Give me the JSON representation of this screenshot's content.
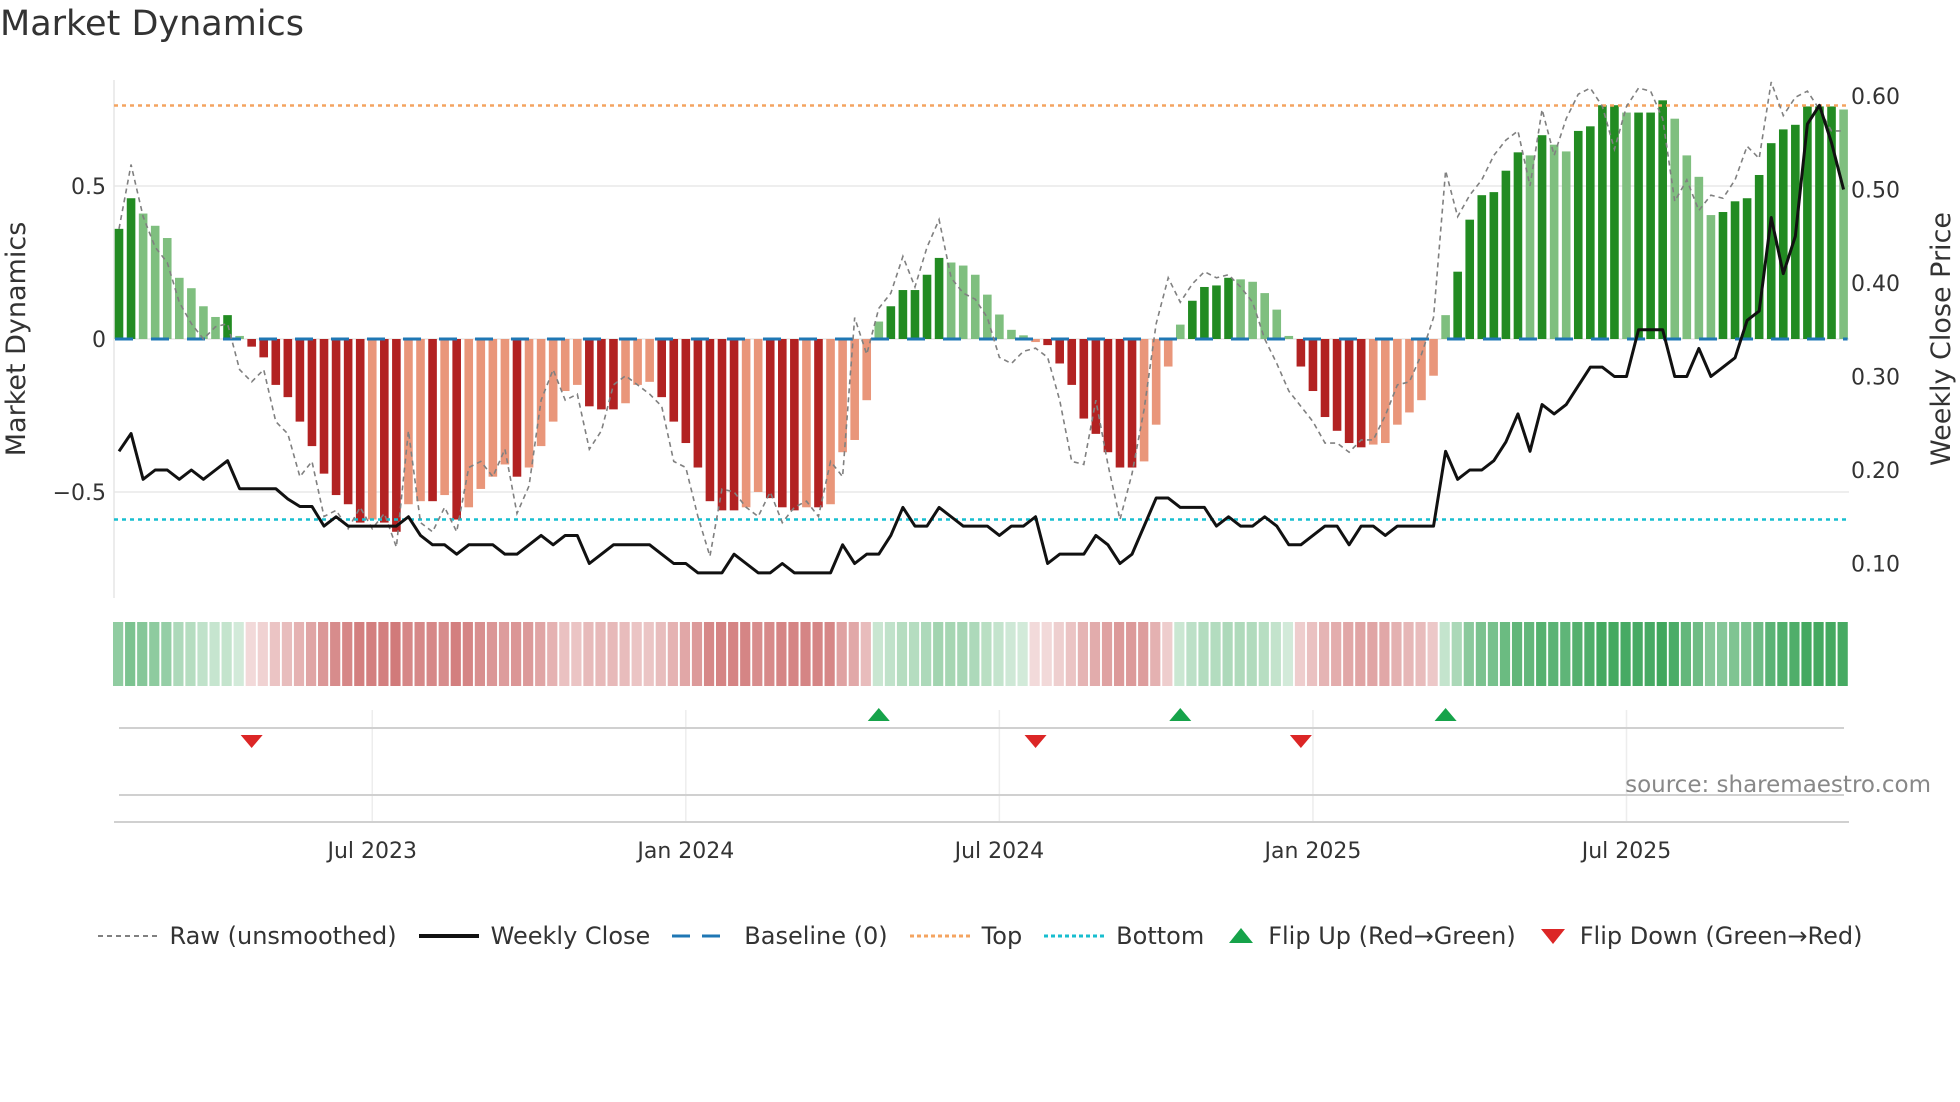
{
  "chart_data": {
    "type": "bar",
    "title": "Market Dynamics",
    "ylabel": "Market Dynamics",
    "y2label": "Weekly Close Price",
    "source": "source: sharemaestro.com",
    "ylim": [
      -0.85,
      0.85
    ],
    "y2lim": [
      0.06,
      0.64
    ],
    "yticks": [
      {
        "v": 0.5,
        "label": "0.5"
      },
      {
        "v": 0,
        "label": "0"
      },
      {
        "v": -0.5,
        "label": "−0.5"
      }
    ],
    "y2ticks": [
      {
        "v": 0.6,
        "label": "0.60"
      },
      {
        "v": 0.5,
        "label": "0.50"
      },
      {
        "v": 0.4,
        "label": "0.40"
      },
      {
        "v": 0.3,
        "label": "0.30"
      },
      {
        "v": 0.2,
        "label": "0.20"
      },
      {
        "v": 0.1,
        "label": "0.10"
      }
    ],
    "xticks": [
      {
        "week_index": 21,
        "label": "Jul 2023"
      },
      {
        "week_index": 47,
        "label": "Jan 2024"
      },
      {
        "week_index": 73,
        "label": "Jul 2024"
      },
      {
        "week_index": 99,
        "label": "Jan 2025"
      },
      {
        "week_index": 125,
        "label": "Jul 2025"
      }
    ],
    "top_level": 0.763,
    "bottom_level": -0.59,
    "baseline": 0,
    "colors": {
      "up_strong": "#228b22",
      "up_weak": "#7fbf7f",
      "down_strong": "#b22222",
      "down_weak": "#e9967a",
      "top": "#f4a460",
      "bottom": "#17becf",
      "baseline": "#1f77b4",
      "close": "#111111",
      "raw": "#808080",
      "flip_up": "#16a34a",
      "flip_down": "#dc2626"
    },
    "smoothed": [
      0.36,
      0.46,
      0.41,
      0.37,
      0.33,
      0.2,
      0.166,
      0.107,
      0.072,
      0.078,
      0.01,
      -0.025,
      -0.06,
      -0.15,
      -0.19,
      -0.27,
      -0.35,
      -0.44,
      -0.51,
      -0.54,
      -0.6,
      -0.59,
      -0.6,
      -0.63,
      -0.54,
      -0.53,
      -0.53,
      -0.51,
      -0.59,
      -0.55,
      -0.49,
      -0.45,
      -0.41,
      -0.45,
      -0.42,
      -0.35,
      -0.27,
      -0.17,
      -0.15,
      -0.22,
      -0.23,
      -0.23,
      -0.21,
      -0.15,
      -0.14,
      -0.19,
      -0.27,
      -0.34,
      -0.42,
      -0.53,
      -0.56,
      -0.56,
      -0.55,
      -0.5,
      -0.52,
      -0.55,
      -0.56,
      -0.55,
      -0.55,
      -0.54,
      -0.37,
      -0.33,
      -0.2,
      0.057,
      0.107,
      0.16,
      0.16,
      0.21,
      0.265,
      0.25,
      0.24,
      0.21,
      0.145,
      0.08,
      0.03,
      0.012,
      -0.01,
      -0.02,
      -0.08,
      -0.15,
      -0.26,
      -0.31,
      -0.37,
      -0.42,
      -0.42,
      -0.4,
      -0.28,
      -0.09,
      0.047,
      0.125,
      0.17,
      0.175,
      0.2,
      0.195,
      0.187,
      0.15,
      0.096,
      0.01,
      -0.09,
      -0.17,
      -0.255,
      -0.3,
      -0.34,
      -0.354,
      -0.345,
      -0.34,
      -0.28,
      -0.24,
      -0.2,
      -0.12,
      0.078,
      0.22,
      0.39,
      0.47,
      0.48,
      0.55,
      0.61,
      0.6,
      0.666,
      0.635,
      0.613,
      0.68,
      0.695,
      0.764,
      0.764,
      0.74,
      0.74,
      0.74,
      0.78,
      0.72,
      0.6,
      0.53,
      0.405,
      0.415,
      0.45,
      0.46,
      0.536,
      0.64,
      0.685,
      0.7,
      0.76,
      0.76,
      0.76,
      0.75
    ],
    "raw": [
      0.36,
      0.57,
      0.4,
      0.3,
      0.25,
      0.12,
      0.05,
      0.0,
      0.04,
      0.05,
      -0.1,
      -0.14,
      -0.1,
      -0.27,
      -0.31,
      -0.45,
      -0.4,
      -0.58,
      -0.56,
      -0.62,
      -0.55,
      -0.62,
      -0.57,
      -0.68,
      -0.3,
      -0.6,
      -0.63,
      -0.55,
      -0.63,
      -0.42,
      -0.4,
      -0.45,
      -0.36,
      -0.57,
      -0.48,
      -0.2,
      -0.1,
      -0.2,
      -0.18,
      -0.36,
      -0.3,
      -0.15,
      -0.12,
      -0.15,
      -0.18,
      -0.22,
      -0.4,
      -0.42,
      -0.58,
      -0.71,
      -0.49,
      -0.5,
      -0.55,
      -0.58,
      -0.5,
      -0.6,
      -0.55,
      -0.53,
      -0.58,
      -0.4,
      -0.45,
      0.07,
      -0.05,
      0.1,
      0.15,
      0.27,
      0.17,
      0.3,
      0.39,
      0.2,
      0.15,
      0.13,
      0.07,
      -0.06,
      -0.08,
      -0.04,
      -0.03,
      -0.06,
      -0.2,
      -0.4,
      -0.41,
      -0.2,
      -0.41,
      -0.59,
      -0.44,
      -0.23,
      0.05,
      0.2,
      0.12,
      0.18,
      0.22,
      0.2,
      0.21,
      0.17,
      0.12,
      0.0,
      -0.08,
      -0.17,
      -0.22,
      -0.27,
      -0.34,
      -0.34,
      -0.37,
      -0.33,
      -0.33,
      -0.25,
      -0.15,
      -0.14,
      -0.05,
      0.07,
      0.55,
      0.4,
      0.47,
      0.52,
      0.6,
      0.65,
      0.68,
      0.5,
      0.75,
      0.6,
      0.72,
      0.8,
      0.82,
      0.76,
      0.62,
      0.76,
      0.82,
      0.81,
      0.72,
      0.45,
      0.52,
      0.42,
      0.47,
      0.46,
      0.52,
      0.63,
      0.59,
      0.84,
      0.73,
      0.79,
      0.81,
      0.75,
      0.68,
      0.68
    ],
    "close": [
      0.22,
      0.239,
      0.19,
      0.2,
      0.2,
      0.19,
      0.2,
      0.19,
      0.2,
      0.21,
      0.18,
      0.18,
      0.18,
      0.18,
      0.169,
      0.161,
      0.161,
      0.14,
      0.15,
      0.14,
      0.14,
      0.14,
      0.14,
      0.14,
      0.15,
      0.13,
      0.12,
      0.12,
      0.11,
      0.12,
      0.12,
      0.12,
      0.11,
      0.11,
      0.12,
      0.13,
      0.12,
      0.13,
      0.13,
      0.1,
      0.11,
      0.12,
      0.12,
      0.12,
      0.12,
      0.11,
      0.1,
      0.1,
      0.09,
      0.09,
      0.09,
      0.11,
      0.1,
      0.09,
      0.09,
      0.1,
      0.09,
      0.09,
      0.09,
      0.09,
      0.12,
      0.1,
      0.11,
      0.11,
      0.13,
      0.16,
      0.14,
      0.14,
      0.16,
      0.15,
      0.14,
      0.14,
      0.14,
      0.13,
      0.14,
      0.14,
      0.15,
      0.1,
      0.11,
      0.11,
      0.11,
      0.13,
      0.12,
      0.1,
      0.11,
      0.14,
      0.17,
      0.17,
      0.16,
      0.16,
      0.16,
      0.14,
      0.15,
      0.14,
      0.14,
      0.15,
      0.14,
      0.12,
      0.12,
      0.13,
      0.14,
      0.14,
      0.12,
      0.14,
      0.14,
      0.13,
      0.14,
      0.14,
      0.14,
      0.14,
      0.22,
      0.19,
      0.2,
      0.2,
      0.21,
      0.23,
      0.26,
      0.22,
      0.27,
      0.26,
      0.27,
      0.29,
      0.31,
      0.31,
      0.3,
      0.3,
      0.35,
      0.35,
      0.35,
      0.3,
      0.3,
      0.33,
      0.3,
      0.31,
      0.32,
      0.36,
      0.37,
      0.47,
      0.41,
      0.45,
      0.57,
      0.59,
      0.55,
      0.5
    ],
    "flips_up": [
      63,
      88,
      110
    ],
    "flips_down": [
      11,
      76,
      98
    ],
    "legend": [
      {
        "key": "raw",
        "label": "Raw (unsmoothed)"
      },
      {
        "key": "close",
        "label": "Weekly Close"
      },
      {
        "key": "baseline",
        "label": "Baseline (0)"
      },
      {
        "key": "top",
        "label": "Top"
      },
      {
        "key": "bottom",
        "label": "Bottom"
      },
      {
        "key": "flip_up",
        "label": "Flip Up (Red→Green)"
      },
      {
        "key": "flip_down",
        "label": "Flip Down (Green→Red)"
      }
    ]
  }
}
